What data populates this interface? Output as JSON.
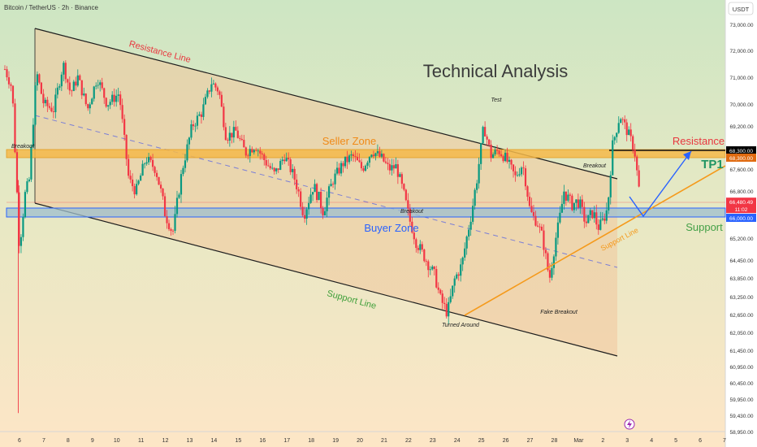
{
  "header": {
    "symbol_title": "Bitcoin / TetherUS · 2h · Binance",
    "currency_label": "USDT"
  },
  "chart_data": {
    "type": "candlestick",
    "title": "Technical Analysis",
    "y_axis": {
      "ylim": [
        58700,
        73200
      ],
      "ticks": [
        "73,000.00",
        "72,000.00",
        "71,000.00",
        "70,000.00",
        "69,200.00",
        "68,300.00",
        "67,600.00",
        "66,800.00",
        "66,000.00",
        "65,200.00",
        "64,450.00",
        "63,850.00",
        "63,250.00",
        "62,650.00",
        "62,050.00",
        "61,450.00",
        "60,950.00",
        "60,450.00",
        "59,950.00",
        "59,430.00",
        "58,950.00"
      ]
    },
    "x_axis": {
      "ticks": [
        "6",
        "7",
        "8",
        "9",
        "10",
        "11",
        "12",
        "13",
        "14",
        "15",
        "16",
        "17",
        "18",
        "19",
        "20",
        "21",
        "22",
        "23",
        "24",
        "25",
        "26",
        "27",
        "28",
        "Mar",
        "2",
        "3",
        "4",
        "5",
        "6",
        "7"
      ],
      "last_candle_tick": "3"
    },
    "price_tags": [
      {
        "value": "68,300.00",
        "color": "#000000"
      },
      {
        "value": "68,300.00",
        "color": "#e06a10"
      },
      {
        "value": "66,480.49",
        "color": "#f23645"
      },
      {
        "value": "11:02",
        "color": "#f23645"
      },
      {
        "value": "66,000.00",
        "color": "#2962ff"
      }
    ],
    "candle_path": [
      {
        "t": 0,
        "p": 71300
      },
      {
        "t": 0.3,
        "p": 70600
      },
      {
        "t": 0.6,
        "p": 64800
      },
      {
        "t": 0.8,
        "p": 66600
      },
      {
        "t": 1.0,
        "p": 67200
      },
      {
        "t": 1.3,
        "p": 71200
      },
      {
        "t": 1.6,
        "p": 70000
      },
      {
        "t": 2.0,
        "p": 69800
      },
      {
        "t": 2.4,
        "p": 71500
      },
      {
        "t": 2.7,
        "p": 70400
      },
      {
        "t": 3.0,
        "p": 71000
      },
      {
        "t": 3.4,
        "p": 69800
      },
      {
        "t": 3.8,
        "p": 71000
      },
      {
        "t": 4.2,
        "p": 70000
      },
      {
        "t": 4.7,
        "p": 70400
      },
      {
        "t": 5.1,
        "p": 67200
      },
      {
        "t": 5.4,
        "p": 66800
      },
      {
        "t": 5.8,
        "p": 68000
      },
      {
        "t": 6.2,
        "p": 67600
      },
      {
        "t": 6.6,
        "p": 66100
      },
      {
        "t": 6.9,
        "p": 65400
      },
      {
        "t": 7.3,
        "p": 67600
      },
      {
        "t": 7.7,
        "p": 69200
      },
      {
        "t": 8.1,
        "p": 69700
      },
      {
        "t": 8.5,
        "p": 70800
      },
      {
        "t": 8.8,
        "p": 70500
      },
      {
        "t": 9.1,
        "p": 68800
      },
      {
        "t": 9.5,
        "p": 69000
      },
      {
        "t": 9.9,
        "p": 68200
      },
      {
        "t": 10.3,
        "p": 68500
      },
      {
        "t": 10.7,
        "p": 67900
      },
      {
        "t": 11.1,
        "p": 67400
      },
      {
        "t": 11.5,
        "p": 68100
      },
      {
        "t": 11.9,
        "p": 67300
      },
      {
        "t": 12.3,
        "p": 66100
      },
      {
        "t": 12.7,
        "p": 67000
      },
      {
        "t": 13.1,
        "p": 66200
      },
      {
        "t": 13.5,
        "p": 67200
      },
      {
        "t": 13.9,
        "p": 67800
      },
      {
        "t": 14.3,
        "p": 68100
      },
      {
        "t": 14.7,
        "p": 67600
      },
      {
        "t": 15.1,
        "p": 68300
      },
      {
        "t": 15.5,
        "p": 68000
      },
      {
        "t": 15.8,
        "p": 67600
      },
      {
        "t": 16.1,
        "p": 67700
      },
      {
        "t": 16.5,
        "p": 66400
      },
      {
        "t": 16.9,
        "p": 65100
      },
      {
        "t": 17.3,
        "p": 64500
      },
      {
        "t": 17.7,
        "p": 63900
      },
      {
        "t": 17.9,
        "p": 63200
      },
      {
        "t": 18.2,
        "p": 62700
      },
      {
        "t": 18.5,
        "p": 63800
      },
      {
        "t": 18.8,
        "p": 64300
      },
      {
        "t": 19.1,
        "p": 65700
      },
      {
        "t": 19.4,
        "p": 67100
      },
      {
        "t": 19.7,
        "p": 69200
      },
      {
        "t": 20.0,
        "p": 68100
      },
      {
        "t": 20.3,
        "p": 68300
      },
      {
        "t": 20.6,
        "p": 68000
      },
      {
        "t": 21.0,
        "p": 67300
      },
      {
        "t": 21.3,
        "p": 67800
      },
      {
        "t": 21.6,
        "p": 66200
      },
      {
        "t": 21.9,
        "p": 65800
      },
      {
        "t": 22.1,
        "p": 65300
      },
      {
        "t": 22.4,
        "p": 63800
      },
      {
        "t": 22.7,
        "p": 65400
      },
      {
        "t": 23.0,
        "p": 66800
      },
      {
        "t": 23.3,
        "p": 66400
      },
      {
        "t": 23.6,
        "p": 66500
      },
      {
        "t": 23.9,
        "p": 65800
      },
      {
        "t": 24.2,
        "p": 66200
      },
      {
        "t": 24.4,
        "p": 65600
      },
      {
        "t": 24.6,
        "p": 65900
      },
      {
        "t": 24.8,
        "p": 66300
      },
      {
        "t": 25.0,
        "p": 68500
      },
      {
        "t": 25.3,
        "p": 69600
      },
      {
        "t": 25.5,
        "p": 69200
      },
      {
        "t": 25.7,
        "p": 68800
      },
      {
        "t": 25.9,
        "p": 68300
      },
      {
        "t": 26.05,
        "p": 67100
      },
      {
        "t": 26.15,
        "p": 66480
      }
    ]
  },
  "annotations": {
    "analysis_title": "Technical Analysis",
    "resistance_line": "Resistance Line",
    "support_line_lower": "Support Line",
    "support_line_orange": "Support Line",
    "seller_zone": "Seller Zone",
    "buyer_zone": "Buyer Zone",
    "breakout_left": "Breakout",
    "breakout_mid": "Breakout",
    "breakout_right": "Breakout",
    "test": "Test",
    "turned_around": "Turned Around",
    "fake_breakout": "Fake Breakout",
    "resistance": "Resistance",
    "support": "Support",
    "tp1": "TP1"
  },
  "colors": {
    "bg_top": "#cfe6c4",
    "bg_bottom": "#fbe8c8",
    "channel_fill": "#f2cfa6",
    "seller_zone": "#f5b84a",
    "buyer_zone": "#8fb3c9",
    "up_candle": "#089981",
    "down_candle": "#f23645",
    "support_orange": "#f59a1b",
    "projection_blue": "#2962ff",
    "resistance_red": "#e8373f",
    "support_green": "#43a047"
  }
}
